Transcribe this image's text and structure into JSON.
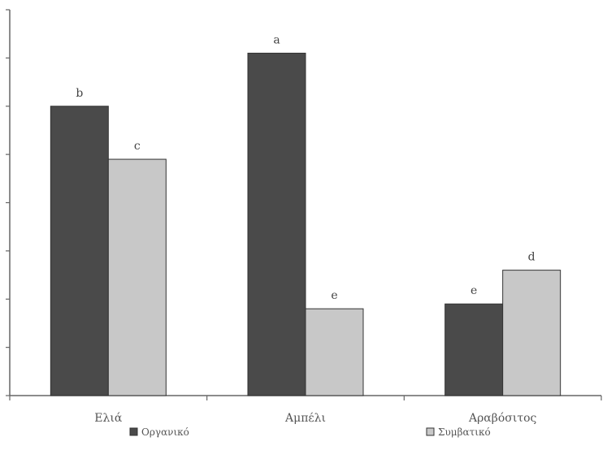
{
  "chart_data": {
    "type": "bar",
    "categories": [
      "Ελιά",
      "Αμπέλι",
      "Αραβόσιτος"
    ],
    "series": [
      {
        "name": "Οργανικό",
        "values": [
          60,
          71,
          19
        ],
        "labels": [
          "b",
          "a",
          "e"
        ],
        "color": "#4a4a4a"
      },
      {
        "name": "Συμβατικό",
        "values": [
          49,
          18,
          26
        ],
        "labels": [
          "c",
          "e",
          "d"
        ],
        "color": "#c8c8c8"
      }
    ],
    "ylim": [
      0,
      80
    ],
    "y_ticks": [
      0,
      10,
      20,
      30,
      40,
      50,
      60,
      70,
      80
    ],
    "y_tick_labels_shown": false,
    "grid": false,
    "legend_position": "bottom",
    "title": "",
    "xlabel": "",
    "ylabel": ""
  }
}
